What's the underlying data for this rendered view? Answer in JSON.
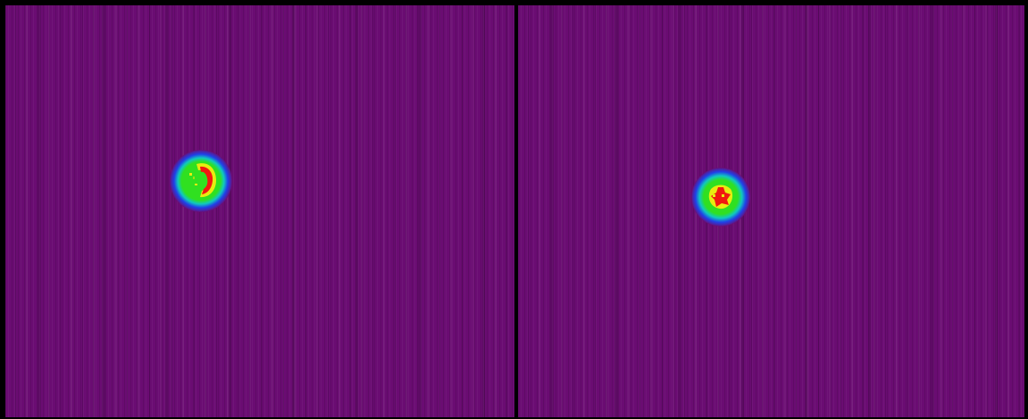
{
  "image": {
    "description_colors": {
      "background": "#6a0c72",
      "frame": "#000000",
      "spot_outer": "#3050e0",
      "spot_ring": "#10c8c0",
      "spot_green": "#30e020",
      "spot_yellow": "#e8ec10",
      "spot_red": "#f01810"
    },
    "panels": [
      {
        "id": "left",
        "colormap": "rainbow"
      },
      {
        "id": "right",
        "colormap": "rainbow"
      }
    ]
  }
}
